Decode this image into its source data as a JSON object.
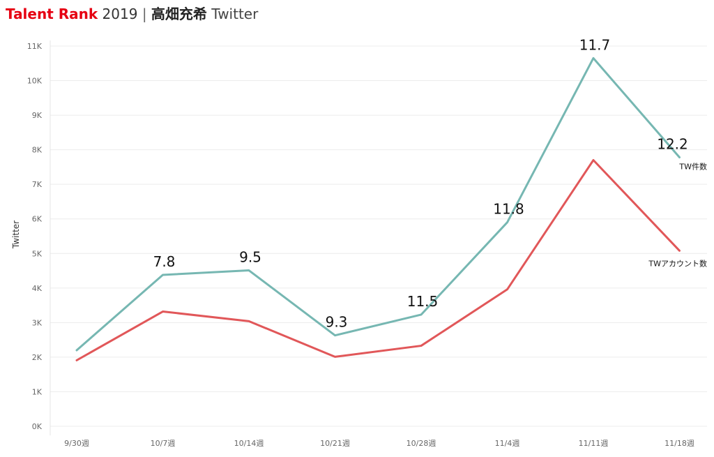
{
  "header": {
    "brand": "Talent Rank",
    "year": "2019",
    "separator": "|",
    "talent_name": "高畑充希",
    "platform": "Twitter"
  },
  "chart_data": {
    "type": "line",
    "title": "Talent Rank 2019 | 高畑充希 Twitter",
    "xlabel": "",
    "ylabel": "Twitter",
    "categories": [
      "9/30週",
      "10/7週",
      "10/14週",
      "10/21週",
      "10/28週",
      "11/4週",
      "11/11週",
      "11/18週"
    ],
    "ylim": [
      0,
      11000
    ],
    "yticks": [
      0,
      1000,
      2000,
      3000,
      4000,
      5000,
      6000,
      7000,
      8000,
      9000,
      10000,
      11000
    ],
    "ytick_labels": [
      "0K",
      "1K",
      "2K",
      "3K",
      "4K",
      "5K",
      "6K",
      "7K",
      "8K",
      "9K",
      "10K",
      "11K"
    ],
    "grid": true,
    "series": [
      {
        "name": "TW件数",
        "color": "#76b7b2",
        "values": [
          2200,
          4380,
          4510,
          2630,
          3230,
          5900,
          10650,
          7780
        ],
        "data_labels": [
          null,
          "7.8",
          "9.5",
          "9.3",
          "11.5",
          "11.8",
          "11.7",
          "12.2"
        ]
      },
      {
        "name": "TWアカウント数",
        "color": "#e15759",
        "values": [
          1910,
          3320,
          3040,
          2010,
          2330,
          3960,
          7700,
          5080
        ]
      }
    ]
  }
}
